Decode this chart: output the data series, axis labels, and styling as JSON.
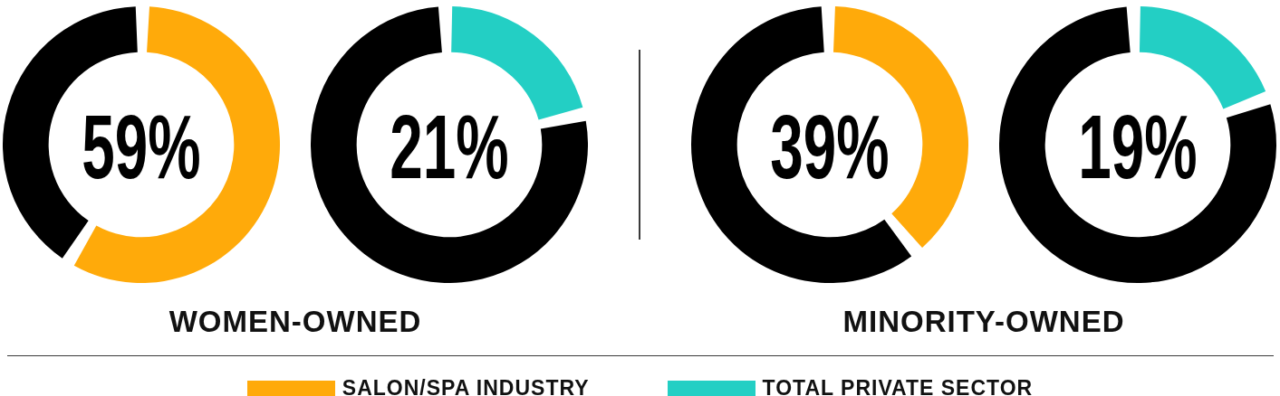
{
  "chart_data": [
    {
      "type": "donut",
      "categories": [
        "SALON/SPA INDUSTRY",
        null
      ],
      "values": [
        59,
        41
      ],
      "colors": [
        "#ffaa0a",
        "#000000"
      ],
      "annotations": [
        "59%"
      ],
      "xlabel": "WOMEN-OWNED",
      "legend": "bottom"
    },
    {
      "type": "donut",
      "categories": [
        "TOTAL PRIVATE SECTOR",
        null
      ],
      "values": [
        21,
        79
      ],
      "colors": [
        "#23cfc4",
        "#000000"
      ],
      "annotations": [
        "21%"
      ],
      "legend": "bottom"
    },
    {
      "type": "donut",
      "categories": [
        null,
        null
      ],
      "values": [
        39,
        61
      ],
      "colors": [
        "#ffaa0a",
        "#000000"
      ],
      "annotations": [
        "39%"
      ],
      "xlabel": "MINORITY-OWNED"
    },
    {
      "type": "donut",
      "categories": [
        null,
        null
      ],
      "values": [
        19,
        81
      ],
      "colors": [
        "#23cfc4",
        "#000000"
      ],
      "annotations": [
        "19%"
      ]
    }
  ]
}
